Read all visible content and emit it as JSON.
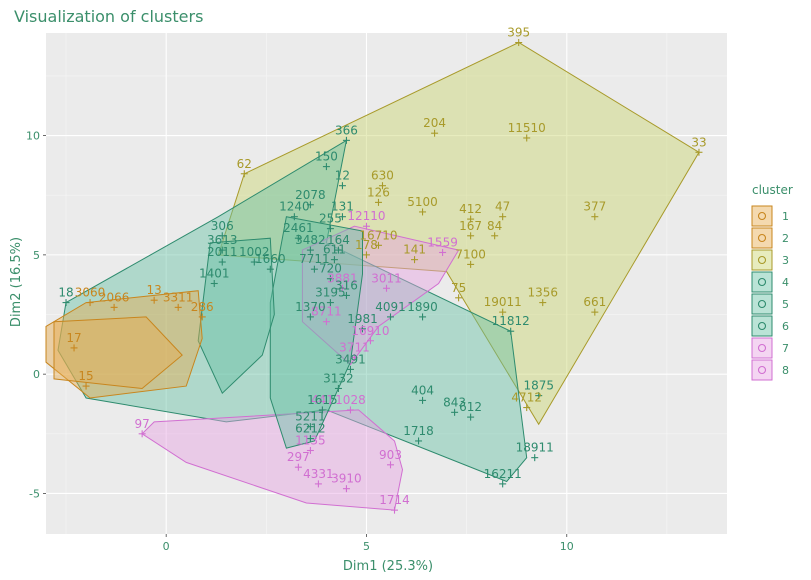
{
  "chart_data": {
    "type": "scatter",
    "title": "Visualization of clusters",
    "xlabel": "Dim1 (25.3%)",
    "ylabel": "Dim2 (16.5%)",
    "xlim": [
      -3.0,
      14.0
    ],
    "ylim": [
      -6.7,
      14.3
    ],
    "xticks": [
      0,
      5,
      10
    ],
    "yticks": [
      -5,
      0,
      5,
      10
    ],
    "grid": true,
    "legend": {
      "title": "cluster",
      "position": "right",
      "labels": [
        "1",
        "2",
        "3",
        "4",
        "5",
        "6",
        "7",
        "8"
      ]
    },
    "series": [
      {
        "name": "3",
        "color": "#a89a2a",
        "fill": "#c9d56e",
        "hull": [
          [
            13.3,
            9.3
          ],
          [
            8.8,
            13.9
          ],
          [
            1.95,
            8.4
          ],
          [
            1.3,
            5.0
          ],
          [
            7.0,
            4.3
          ],
          [
            9.3,
            -2.1
          ]
        ],
        "points": [
          {
            "x": 13.3,
            "y": 9.3,
            "label": "33"
          },
          {
            "x": 8.8,
            "y": 13.9,
            "label": "395"
          },
          {
            "x": 6.7,
            "y": 10.1,
            "label": "204"
          },
          {
            "x": 9.0,
            "y": 9.9,
            "label": "11510"
          },
          {
            "x": 1.95,
            "y": 8.4,
            "label": "62"
          },
          {
            "x": 5.4,
            "y": 7.9,
            "label": "630"
          },
          {
            "x": 5.3,
            "y": 7.2,
            "label": "126"
          },
          {
            "x": 6.4,
            "y": 6.8,
            "label": "5100"
          },
          {
            "x": 7.6,
            "y": 6.5,
            "label": "412"
          },
          {
            "x": 8.4,
            "y": 6.6,
            "label": "47"
          },
          {
            "x": 10.7,
            "y": 6.6,
            "label": "377"
          },
          {
            "x": 7.6,
            "y": 5.8,
            "label": "167"
          },
          {
            "x": 8.2,
            "y": 5.8,
            "label": "84"
          },
          {
            "x": 5.3,
            "y": 5.4,
            "label": "16710"
          },
          {
            "x": 5.0,
            "y": 5.0,
            "label": "178"
          },
          {
            "x": 6.2,
            "y": 4.8,
            "label": "141"
          },
          {
            "x": 7.6,
            "y": 4.6,
            "label": "7100"
          },
          {
            "x": 7.3,
            "y": 3.2,
            "label": "75"
          },
          {
            "x": 9.4,
            "y": 3.0,
            "label": "1356"
          },
          {
            "x": 10.7,
            "y": 2.6,
            "label": "661"
          },
          {
            "x": 8.4,
            "y": 2.6,
            "label": "19011"
          },
          {
            "x": 9.0,
            "y": -1.4,
            "label": "4712"
          }
        ]
      },
      {
        "name": "6",
        "color": "#2e8b6e",
        "fill": "#66c2a5",
        "hull": [
          [
            4.5,
            9.8
          ],
          [
            1.3,
            6.6
          ],
          [
            -2.5,
            3.0
          ],
          [
            -2.7,
            1.0
          ],
          [
            -2.0,
            -1.0
          ],
          [
            1.5,
            -2.0
          ],
          [
            4.0,
            -1.5
          ],
          [
            8.5,
            -4.5
          ],
          [
            9.0,
            -3.5
          ],
          [
            8.6,
            1.8
          ],
          [
            4.0,
            5.5
          ]
        ],
        "points": [
          {
            "x": 4.5,
            "y": 9.8,
            "label": "366"
          },
          {
            "x": 4.0,
            "y": 8.7,
            "label": "150"
          },
          {
            "x": 4.4,
            "y": 7.9,
            "label": "12"
          },
          {
            "x": -2.5,
            "y": 3.0,
            "label": "18"
          },
          {
            "x": 6.4,
            "y": 2.4,
            "label": "1890"
          },
          {
            "x": 8.6,
            "y": 1.8,
            "label": "11812"
          },
          {
            "x": 5.6,
            "y": 2.4,
            "label": "4091"
          },
          {
            "x": 9.3,
            "y": -0.9,
            "label": "1875"
          },
          {
            "x": 6.4,
            "y": -1.1,
            "label": "404"
          },
          {
            "x": 7.2,
            "y": -1.6,
            "label": "843"
          },
          {
            "x": 7.6,
            "y": -1.8,
            "label": "612"
          },
          {
            "x": 6.3,
            "y": -2.8,
            "label": "1718"
          },
          {
            "x": 9.2,
            "y": -3.5,
            "label": "18911"
          },
          {
            "x": 8.4,
            "y": -4.6,
            "label": "16211"
          }
        ]
      },
      {
        "name": "8",
        "color": "#d16fd1",
        "fill": "#e7a2e2",
        "hull": [
          [
            -0.6,
            -2.5
          ],
          [
            -0.3,
            -2.0
          ],
          [
            4.8,
            -1.5
          ],
          [
            5.7,
            -2.8
          ],
          [
            5.9,
            -4.0
          ],
          [
            5.7,
            -5.7
          ],
          [
            3.5,
            -5.4
          ],
          [
            0.5,
            -3.7
          ]
        ],
        "points": [
          {
            "x": -0.6,
            "y": -2.5,
            "label": "97"
          },
          {
            "x": 5.6,
            "y": -3.8,
            "label": "903"
          },
          {
            "x": 4.5,
            "y": -4.8,
            "label": "3910"
          },
          {
            "x": 3.8,
            "y": -4.6,
            "label": "4331"
          },
          {
            "x": 5.7,
            "y": -5.7,
            "label": "1714"
          },
          {
            "x": 4.6,
            "y": -1.5,
            "label": "1028"
          },
          {
            "x": 3.9,
            "y": -1.5,
            "label": "441"
          },
          {
            "x": 3.6,
            "y": -3.2,
            "label": "1135"
          },
          {
            "x": 3.3,
            "y": -3.9,
            "label": "297"
          }
        ]
      },
      {
        "name": "7",
        "color": "#d16fd1",
        "fill": "#e7a2e2",
        "hull": [
          [
            4.7,
            6.2
          ],
          [
            7.3,
            5.2
          ],
          [
            6.8,
            3.8
          ],
          [
            5.3,
            2.0
          ],
          [
            4.6,
            0.4
          ],
          [
            3.4,
            2.2
          ],
          [
            3.4,
            5.2
          ]
        ],
        "points": [
          {
            "x": 5.0,
            "y": 6.2,
            "label": "12110"
          },
          {
            "x": 6.9,
            "y": 5.1,
            "label": "1559"
          },
          {
            "x": 5.5,
            "y": 3.6,
            "label": "3011"
          },
          {
            "x": 4.4,
            "y": 3.6,
            "label": "3881"
          },
          {
            "x": 5.1,
            "y": 1.4,
            "label": "16910"
          },
          {
            "x": 4.7,
            "y": 0.7,
            "label": "3711"
          },
          {
            "x": 4.0,
            "y": 2.2,
            "label": "8711"
          }
        ]
      },
      {
        "name": "4",
        "color": "#2e8b6e",
        "fill": "#66c2a5",
        "hull": [
          [
            3.0,
            6.6
          ],
          [
            4.9,
            6.0
          ],
          [
            4.9,
            4.2
          ],
          [
            4.6,
            0.5
          ],
          [
            3.7,
            -2.8
          ],
          [
            3.0,
            -3.1
          ],
          [
            2.6,
            -1.0
          ],
          [
            2.6,
            3.0
          ]
        ],
        "points": [
          {
            "x": 3.6,
            "y": 7.1,
            "label": "2078"
          },
          {
            "x": 3.2,
            "y": 6.6,
            "label": "1240"
          },
          {
            "x": 4.4,
            "y": 6.6,
            "label": "131"
          },
          {
            "x": 4.1,
            "y": 6.1,
            "label": "255"
          },
          {
            "x": 3.3,
            "y": 5.7,
            "label": "2461"
          },
          {
            "x": 3.6,
            "y": 5.2,
            "label": "3482"
          },
          {
            "x": 4.3,
            "y": 5.2,
            "label": "164"
          },
          {
            "x": 4.2,
            "y": 4.8,
            "label": "611"
          },
          {
            "x": 3.7,
            "y": 4.4,
            "label": "7711"
          },
          {
            "x": 4.1,
            "y": 4.0,
            "label": "720"
          },
          {
            "x": 4.5,
            "y": 3.3,
            "label": "316"
          },
          {
            "x": 4.1,
            "y": 3.0,
            "label": "3195"
          },
          {
            "x": 3.6,
            "y": 2.4,
            "label": "1370"
          },
          {
            "x": 4.9,
            "y": 1.9,
            "label": "1981"
          },
          {
            "x": 4.6,
            "y": 0.2,
            "label": "3491"
          },
          {
            "x": 4.3,
            "y": -0.6,
            "label": "3132"
          },
          {
            "x": 3.9,
            "y": -1.5,
            "label": "1615"
          },
          {
            "x": 3.6,
            "y": -2.2,
            "label": "5211"
          },
          {
            "x": 3.6,
            "y": -2.7,
            "label": "6212"
          }
        ]
      },
      {
        "name": "5",
        "color": "#2e8b6e",
        "fill": "#66c2a5",
        "hull": [
          [
            1.1,
            5.5
          ],
          [
            2.6,
            5.7
          ],
          [
            2.7,
            2.5
          ],
          [
            2.4,
            0.8
          ],
          [
            1.4,
            -0.8
          ],
          [
            0.8,
            1.4
          ]
        ],
        "points": [
          {
            "x": 1.4,
            "y": 5.8,
            "label": "306"
          },
          {
            "x": 1.4,
            "y": 5.2,
            "label": "3613"
          },
          {
            "x": 1.4,
            "y": 4.7,
            "label": "2011"
          },
          {
            "x": 2.2,
            "y": 4.7,
            "label": "1002"
          },
          {
            "x": 2.6,
            "y": 4.4,
            "label": "1660"
          },
          {
            "x": 1.2,
            "y": 3.8,
            "label": "1401"
          }
        ]
      },
      {
        "name": "2",
        "color": "#c8861e",
        "fill": "#e6ab4e",
        "hull": [
          [
            -2.0,
            3.0
          ],
          [
            0.8,
            3.5
          ],
          [
            0.9,
            1.5
          ],
          [
            0.5,
            -0.5
          ],
          [
            -1.9,
            -1.0
          ],
          [
            -3.0,
            0.5
          ],
          [
            -3.0,
            2.0
          ]
        ],
        "points": [
          {
            "x": -1.9,
            "y": 3.0,
            "label": "3060"
          },
          {
            "x": -1.3,
            "y": 2.8,
            "label": "2066"
          },
          {
            "x": -2.3,
            "y": 1.1,
            "label": "17"
          },
          {
            "x": -2.0,
            "y": -0.5,
            "label": "15"
          }
        ]
      },
      {
        "name": "1",
        "color": "#c8861e",
        "fill": "#e6ab4e",
        "hull": [
          [
            -2.8,
            2.2
          ],
          [
            -0.5,
            2.4
          ],
          [
            0.4,
            0.8
          ],
          [
            -0.6,
            -0.6
          ],
          [
            -2.8,
            -0.2
          ]
        ],
        "points": [
          {
            "x": -0.3,
            "y": 3.1,
            "label": "13"
          },
          {
            "x": 0.3,
            "y": 2.8,
            "label": "3311"
          },
          {
            "x": 0.9,
            "y": 2.4,
            "label": "286"
          }
        ]
      }
    ]
  }
}
